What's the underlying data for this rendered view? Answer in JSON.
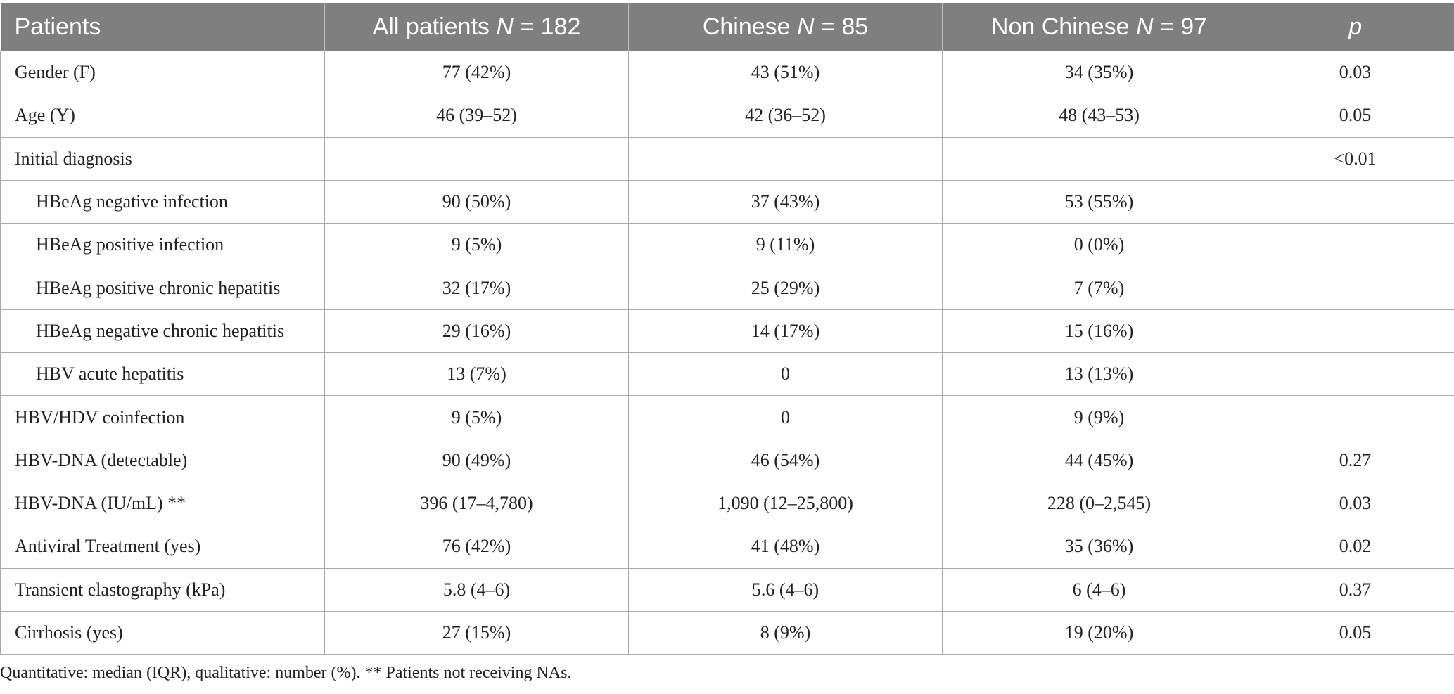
{
  "table": {
    "headers": {
      "patients": "Patients",
      "all_prefix": "All patients ",
      "all_n": "N",
      "all_suffix": " = 182",
      "chinese_prefix": "Chinese ",
      "chinese_n": "N",
      "chinese_suffix": " = 85",
      "nonchinese_prefix": "Non Chinese ",
      "nonchinese_n": "N",
      "nonchinese_suffix": " = 97",
      "p": "p"
    },
    "rows": [
      {
        "label": "Gender (F)",
        "all": "77 (42%)",
        "chinese": "43 (51%)",
        "nonchinese": "34 (35%)",
        "p": "0.03"
      },
      {
        "label": "Age (Y)",
        "all": "46 (39–52)",
        "chinese": "42 (36–52)",
        "nonchinese": "48 (43–53)",
        "p": "0.05"
      },
      {
        "label": "Initial diagnosis",
        "all": "",
        "chinese": "",
        "nonchinese": "",
        "p": "<0.01"
      },
      {
        "label": "HBeAg negative infection",
        "all": "90 (50%)",
        "chinese": "37 (43%)",
        "nonchinese": "53 (55%)",
        "p": ""
      },
      {
        "label": "HBeAg positive infection",
        "all": "9 (5%)",
        "chinese": "9 (11%)",
        "nonchinese": "0 (0%)",
        "p": ""
      },
      {
        "label": "HBeAg positive chronic hepatitis",
        "all": "32 (17%)",
        "chinese": "25 (29%)",
        "nonchinese": "7 (7%)",
        "p": ""
      },
      {
        "label": "HBeAg negative chronic hepatitis",
        "all": "29 (16%)",
        "chinese": "14 (17%)",
        "nonchinese": "15 (16%)",
        "p": ""
      },
      {
        "label": "HBV acute hepatitis",
        "all": "13 (7%)",
        "chinese": "0",
        "nonchinese": "13 (13%)",
        "p": ""
      },
      {
        "label": "HBV/HDV coinfection",
        "all": "9 (5%)",
        "chinese": "0",
        "nonchinese": "9 (9%)",
        "p": ""
      },
      {
        "label": "HBV-DNA (detectable)",
        "all": "90 (49%)",
        "chinese": "46 (54%)",
        "nonchinese": "44 (45%)",
        "p": "0.27"
      },
      {
        "label": "HBV-DNA (IU/mL) **",
        "all": "396 (17–4,780)",
        "chinese": "1,090 (12–25,800)",
        "nonchinese": "228 (0–2,545)",
        "p": "0.03"
      },
      {
        "label": "Antiviral Treatment (yes)",
        "all": "76 (42%)",
        "chinese": "41 (48%)",
        "nonchinese": "35 (36%)",
        "p": "0.02"
      },
      {
        "label": "Transient elastography (kPa)",
        "all": "5.8 (4–6)",
        "chinese": "5.6 (4–6)",
        "nonchinese": "6 (4–6)",
        "p": "0.37"
      },
      {
        "label": "Cirrhosis (yes)",
        "all": "27 (15%)",
        "chinese": "8 (9%)",
        "nonchinese": "19 (20%)",
        "p": "0.05"
      }
    ]
  },
  "footnote": "Quantitative: median (IQR), qualitative: number (%). ** Patients not receiving NAs."
}
